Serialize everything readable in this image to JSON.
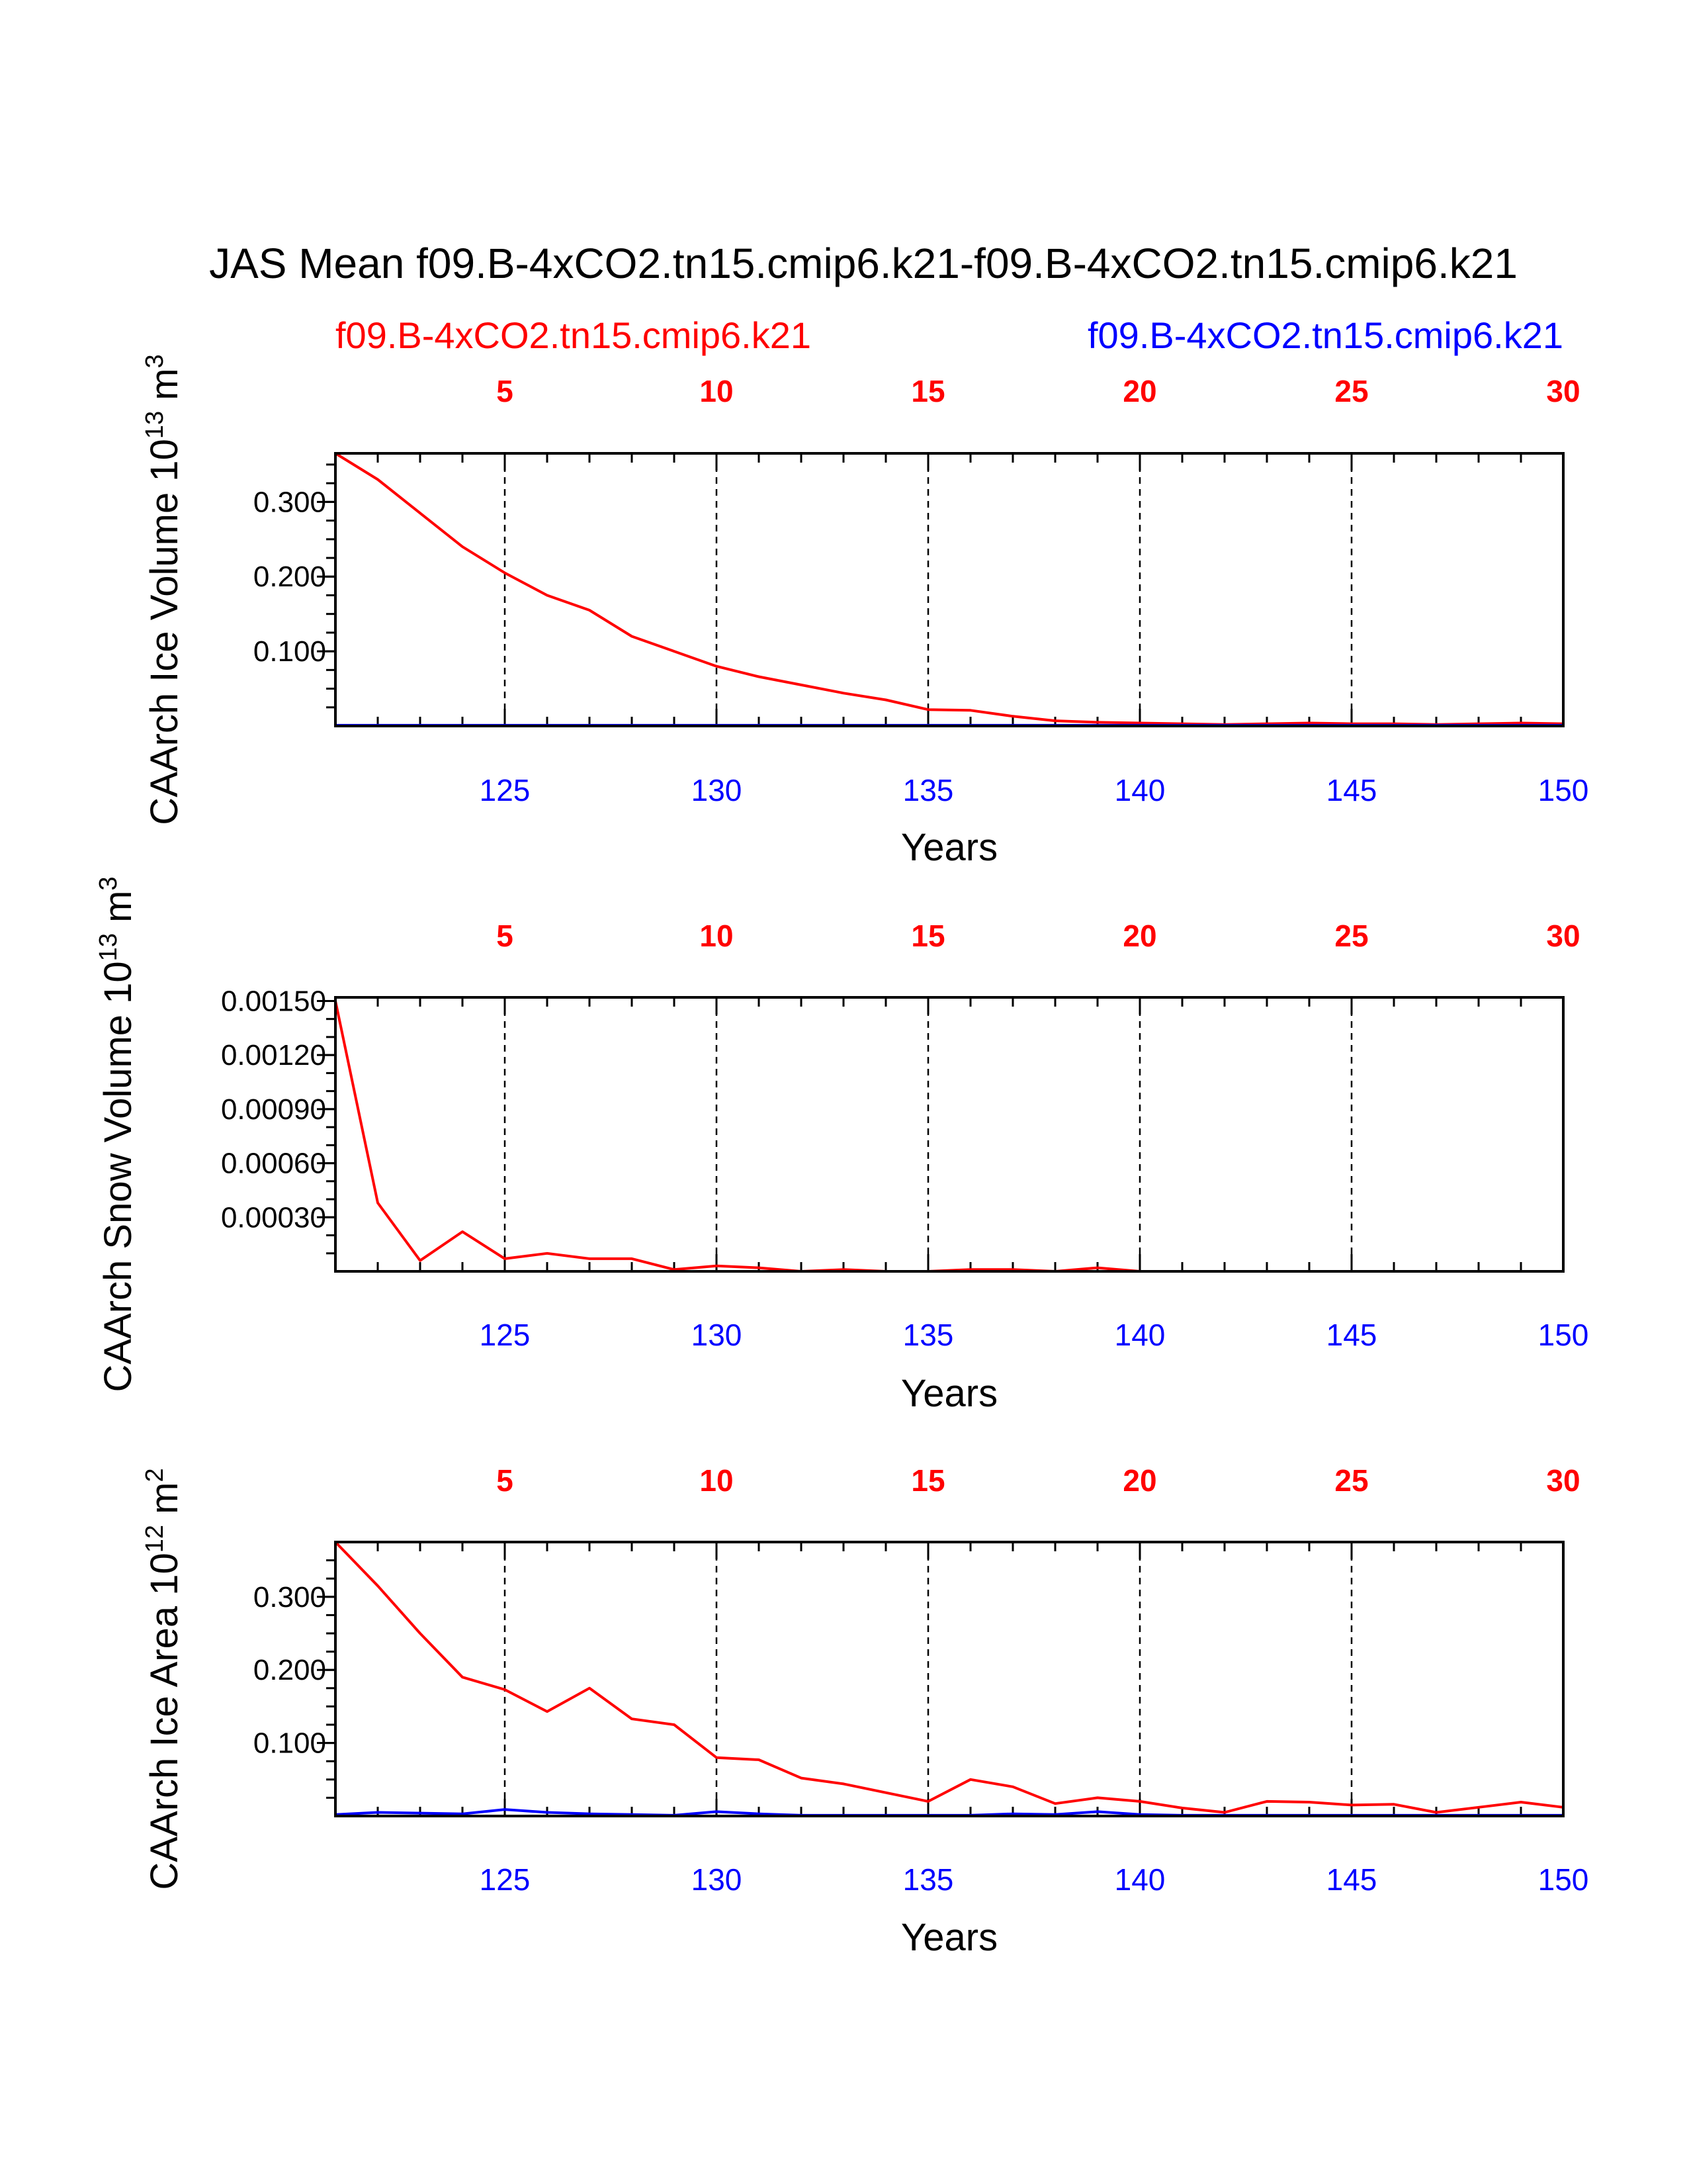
{
  "header": {
    "title": "JAS Mean f09.B-4xCO2.tn15.cmip6.k21-f09.B-4xCO2.tn15.cmip6.k21",
    "case1": "f09.B-4xCO2.tn15.cmip6.k21",
    "case2": "f09.B-4xCO2.tn15.cmip6.k21"
  },
  "colors": {
    "case1": "#ff0000",
    "case2": "#0000ff",
    "axes": "#000000"
  },
  "chart_data": [
    {
      "type": "line",
      "title": "",
      "xlabel": "Years",
      "ylabel": "CAArch Ice Volume 10",
      "ylabel_exp": "13",
      "ylabel_unit": " m",
      "ylabel_unit_exp": "3",
      "xlim": [
        121,
        150
      ],
      "ylim": [
        0,
        0.365
      ],
      "bottom_ticks": [
        125,
        130,
        135,
        140,
        145,
        150
      ],
      "bottom_tick_labels": [
        "125",
        "130",
        "135",
        "140",
        "145",
        "150"
      ],
      "top_ticks": [
        5,
        10,
        15,
        20,
        25,
        30
      ],
      "top_tick_labels": [
        "5",
        "10",
        "15",
        "20",
        "25",
        "30"
      ],
      "y_ticks": [
        0.1,
        0.2,
        0.3
      ],
      "y_tick_labels": [
        "0.100",
        "0.200",
        "0.300"
      ],
      "y_minor_step": 0.025,
      "x": [
        121,
        122,
        123,
        124,
        125,
        126,
        127,
        128,
        129,
        130,
        131,
        132,
        133,
        134,
        135,
        136,
        137,
        138,
        139,
        140,
        141,
        142,
        143,
        144,
        145,
        146,
        147,
        148,
        149,
        150
      ],
      "series": [
        {
          "name": "f09.B-4xCO2.tn15.cmip6.k21",
          "color": "#ff0000",
          "values": [
            0.365,
            0.33,
            0.285,
            0.24,
            0.205,
            0.175,
            0.155,
            0.12,
            0.1,
            0.08,
            0.066,
            0.055,
            0.044,
            0.035,
            0.022,
            0.021,
            0.013,
            0.007,
            0.005,
            0.004,
            0.003,
            0.002,
            0.003,
            0.004,
            0.003,
            0.003,
            0.002,
            0.003,
            0.004,
            0.003
          ]
        },
        {
          "name": "f09.B-4xCO2.tn15.cmip6.k21",
          "color": "#0000ff",
          "values": [
            0.001,
            0.001,
            0.001,
            0.001,
            0.001,
            0.001,
            0.001,
            0.001,
            0.001,
            0.001,
            0.001,
            0.001,
            0.001,
            0.001,
            0.001,
            0.001,
            0.001,
            0.001,
            0.001,
            0.001,
            0.001,
            0.001,
            0.001,
            0.001,
            0.001,
            0.001,
            0.001,
            0.001,
            0.001,
            0.001
          ]
        }
      ]
    },
    {
      "type": "line",
      "title": "",
      "xlabel": "Years",
      "ylabel": "CAArch Snow Volume 10",
      "ylabel_exp": "13",
      "ylabel_unit": " m",
      "ylabel_unit_exp": "3",
      "xlim": [
        121,
        150
      ],
      "ylim": [
        0,
        0.00152
      ],
      "bottom_ticks": [
        125,
        130,
        135,
        140,
        145,
        150
      ],
      "bottom_tick_labels": [
        "125",
        "130",
        "135",
        "140",
        "145",
        "150"
      ],
      "top_ticks": [
        5,
        10,
        15,
        20,
        25,
        30
      ],
      "top_tick_labels": [
        "5",
        "10",
        "15",
        "20",
        "25",
        "30"
      ],
      "y_ticks": [
        0.0003,
        0.0006,
        0.0009,
        0.0012,
        0.0015
      ],
      "y_tick_labels": [
        "0.00030",
        "0.00060",
        "0.00090",
        "0.00120",
        "0.00150"
      ],
      "y_minor_step": 0.0001,
      "x": [
        121,
        122,
        123,
        124,
        125,
        126,
        127,
        128,
        129,
        130,
        131,
        132,
        133,
        134,
        135,
        136,
        137,
        138,
        139,
        140,
        141,
        142,
        143,
        144,
        145,
        146,
        147,
        148,
        149,
        150
      ],
      "series": [
        {
          "name": "f09.B-4xCO2.tn15.cmip6.k21",
          "color": "#ff0000",
          "values": [
            0.0015,
            0.00038,
            6e-05,
            0.00022,
            7e-05,
            0.0001,
            7e-05,
            7e-05,
            1e-05,
            3e-05,
            2e-05,
            0.0,
            1e-05,
            0.0,
            0.0,
            1e-05,
            1e-05,
            0.0,
            2e-05,
            0.0,
            0.0,
            0.0,
            0.0,
            0.0,
            0.0,
            0.0,
            0.0,
            0.0,
            0.0,
            0.0
          ]
        },
        {
          "name": "f09.B-4xCO2.tn15.cmip6.k21",
          "color": "#0000ff",
          "values": [
            0,
            0,
            0,
            0,
            0,
            0,
            0,
            0,
            0,
            0,
            0,
            0,
            0,
            0,
            0,
            0,
            0,
            0,
            0,
            0,
            0,
            0,
            0,
            0,
            0,
            0,
            0,
            0,
            0,
            0
          ]
        }
      ]
    },
    {
      "type": "line",
      "title": "",
      "xlabel": "Years",
      "ylabel": "CAArch Ice Area 10",
      "ylabel_exp": "12",
      "ylabel_unit": " m",
      "ylabel_unit_exp": "2",
      "xlim": [
        121,
        150
      ],
      "ylim": [
        0,
        0.375
      ],
      "bottom_ticks": [
        125,
        130,
        135,
        140,
        145,
        150
      ],
      "bottom_tick_labels": [
        "125",
        "130",
        "135",
        "140",
        "145",
        "150"
      ],
      "top_ticks": [
        5,
        10,
        15,
        20,
        25,
        30
      ],
      "top_tick_labels": [
        "5",
        "10",
        "15",
        "20",
        "25",
        "30"
      ],
      "y_ticks": [
        0.1,
        0.2,
        0.3
      ],
      "y_tick_labels": [
        "0.100",
        "0.200",
        "0.300"
      ],
      "y_minor_step": 0.025,
      "x": [
        121,
        122,
        123,
        124,
        125,
        126,
        127,
        128,
        129,
        130,
        131,
        132,
        133,
        134,
        135,
        136,
        137,
        138,
        139,
        140,
        141,
        142,
        143,
        144,
        145,
        146,
        147,
        148,
        149,
        150
      ],
      "series": [
        {
          "name": "f09.B-4xCO2.tn15.cmip6.k21",
          "color": "#ff0000",
          "values": [
            0.375,
            0.315,
            0.25,
            0.19,
            0.173,
            0.143,
            0.175,
            0.133,
            0.125,
            0.08,
            0.077,
            0.052,
            0.044,
            0.032,
            0.02,
            0.05,
            0.04,
            0.017,
            0.025,
            0.02,
            0.011,
            0.005,
            0.02,
            0.019,
            0.015,
            0.016,
            0.005,
            0.012,
            0.019,
            0.012
          ]
        },
        {
          "name": "f09.B-4xCO2.tn15.cmip6.k21",
          "color": "#0000ff",
          "values": [
            0.002,
            0.005,
            0.004,
            0.003,
            0.009,
            0.005,
            0.003,
            0.002,
            0.001,
            0.006,
            0.003,
            0.001,
            0.001,
            0.001,
            0.001,
            0.001,
            0.003,
            0.002,
            0.006,
            0.002,
            0.001,
            0.001,
            0.001,
            0.001,
            0.001,
            0.001,
            0.001,
            0.001,
            0.001,
            0.001
          ]
        }
      ]
    }
  ]
}
